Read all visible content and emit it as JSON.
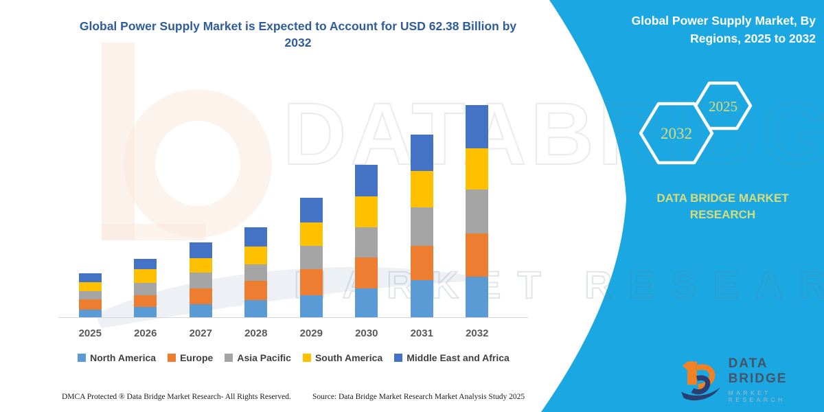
{
  "header": {
    "title_line1": "Global Power Supply Market is Expected to Account for USD 62.38 Billion by",
    "title_line2": "2032",
    "title_color": "#2E5C9C"
  },
  "side_panel": {
    "bg_color": "#1BA8E2",
    "title_line1": "Global Power Supply Market, By",
    "title_line2": "Regions, 2025 to 2032",
    "badge_large_year": "2032",
    "badge_small_year": "2025",
    "badge_text_color": "#D6DC7B",
    "brand_line1": "DATA BRIDGE MARKET",
    "brand_line2": "RESEARCH"
  },
  "chart_data": {
    "type": "bar",
    "stacked": true,
    "title": "Global Power Supply Market is Expected to Account for USD 62.38 Billion by 2032",
    "unit": "USD Billion",
    "categories": [
      "2025",
      "2026",
      "2027",
      "2028",
      "2029",
      "2030",
      "2031",
      "2032"
    ],
    "series": [
      {
        "name": "North America",
        "color": "#5B9BD5",
        "values": [
          2.4,
          3.2,
          4.0,
          5.2,
          6.6,
          8.7,
          11.1,
          12.1
        ]
      },
      {
        "name": "Europe",
        "color": "#ED7D31",
        "values": [
          3.0,
          3.5,
          4.6,
          5.6,
          7.6,
          9.1,
          10.1,
          12.7
        ]
      },
      {
        "name": "Asia Pacific",
        "color": "#A5A5A5",
        "values": [
          2.4,
          3.6,
          4.6,
          5.0,
          7.0,
          8.7,
          11.1,
          12.9
        ]
      },
      {
        "name": "South America",
        "color": "#FFC000",
        "values": [
          2.6,
          4.0,
          4.2,
          5.2,
          6.8,
          9.1,
          10.7,
          12.0
        ]
      },
      {
        "name": "Middle East and Africa",
        "color": "#4472C4",
        "values": [
          2.8,
          3.0,
          4.8,
          5.6,
          7.2,
          9.3,
          10.7,
          12.68
        ]
      }
    ],
    "totals_by_year": [
      13.2,
      17.3,
      22.2,
      26.6,
      35.2,
      44.9,
      53.7,
      62.38
    ],
    "ylim": [
      0,
      65
    ],
    "grid": false,
    "legend_position": "bottom"
  },
  "watermark": {
    "row1": "DATABRIDGE",
    "row2": "MARKET RESEARCH"
  },
  "footer": {
    "left": "DMCA Protected ® Data Bridge Market Research-  All Rights Reserved.",
    "right": "Source: Data Bridge Market Research  Market Analysis Study 2025"
  },
  "logo": {
    "name": "DATA BRIDGE",
    "subtitle": "MARKET RESEARCH"
  }
}
